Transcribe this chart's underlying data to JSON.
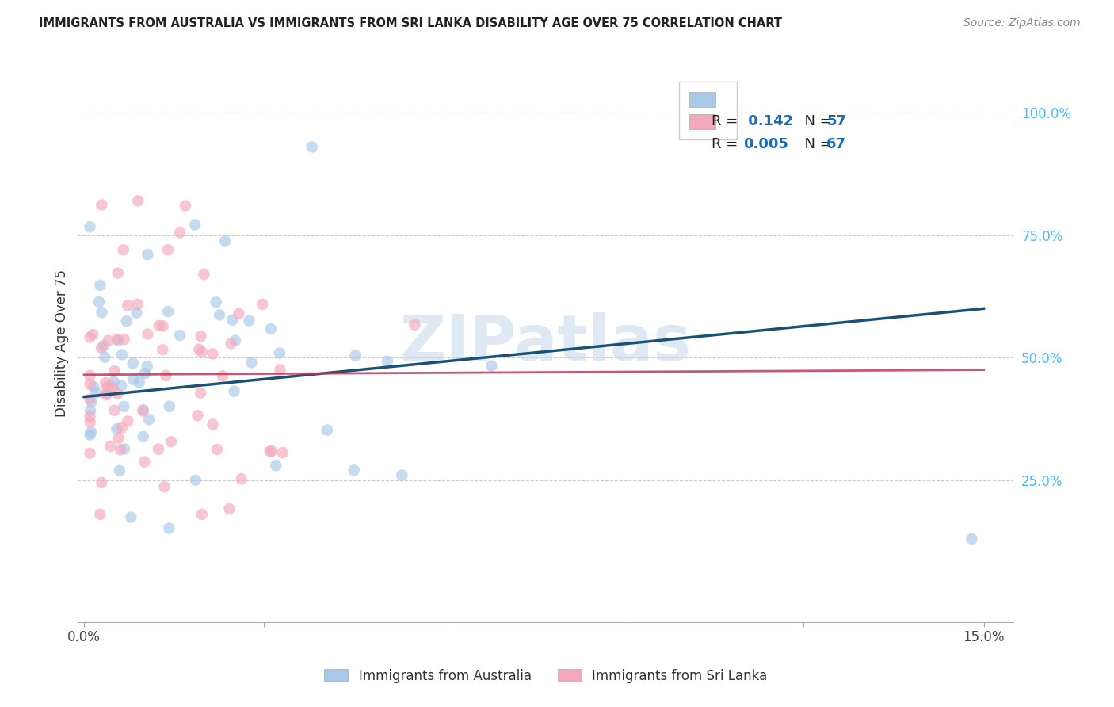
{
  "title": "IMMIGRANTS FROM AUSTRALIA VS IMMIGRANTS FROM SRI LANKA DISABILITY AGE OVER 75 CORRELATION CHART",
  "source": "Source: ZipAtlas.com",
  "ylabel_label": "Disability Age Over 75",
  "xlim": [
    0.0,
    0.15
  ],
  "ylim": [
    0.0,
    1.1
  ],
  "R_australia": 0.142,
  "N_australia": 57,
  "R_srilanka": 0.005,
  "N_srilanka": 67,
  "color_australia": "#a8c8e8",
  "color_srilanka": "#f4a8bb",
  "trendline_australia": "#1a5276",
  "trendline_srilanka": "#c0395a",
  "watermark": "ZIPatlas",
  "grid_color": "#cccccc",
  "right_tick_color": "#4db8ff",
  "legend_text_color": "#1a6bb5"
}
